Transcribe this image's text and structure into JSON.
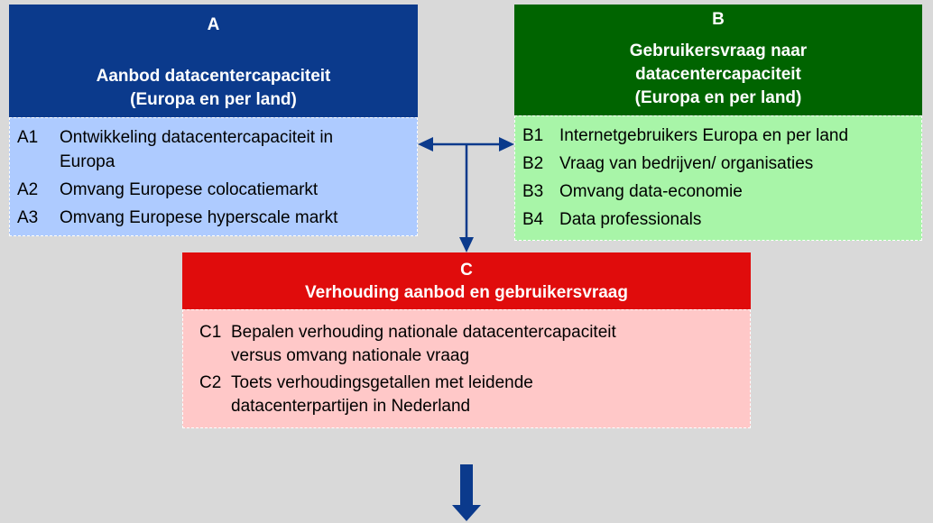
{
  "boxes": [
    {
      "label": "A",
      "title": [
        "Aanbod datacentercapaciteit",
        "(Europa en per land)"
      ],
      "items": [
        {
          "code": "A1",
          "lines": [
            "Ontwikkeling datacentercapaciteit in",
            "Europa"
          ]
        },
        {
          "code": "A2",
          "lines": [
            "Omvang Europese colocatiemarkt"
          ]
        },
        {
          "code": "A3",
          "lines": [
            "Omvang Europese hyperscale markt"
          ]
        }
      ]
    },
    {
      "label": "B",
      "title": [
        "Gebruikersvraag naar",
        "datacentercapaciteit",
        "(Europa en per land)"
      ],
      "items": [
        {
          "code": "B1",
          "lines": [
            "Internetgebruikers Europa en per land"
          ]
        },
        {
          "code": "B2",
          "lines": [
            "Vraag van bedrijven/ organisaties"
          ]
        },
        {
          "code": "B3",
          "lines": [
            "Omvang data-economie"
          ]
        },
        {
          "code": "B4",
          "lines": [
            "Data professionals"
          ]
        }
      ]
    },
    {
      "label": "C",
      "title": [
        "Verhouding aanbod en gebruikersvraag"
      ],
      "items": [
        {
          "code": "C1",
          "lines": [
            "Bepalen verhouding nationale datacentercapaciteit",
            "versus omvang nationale vraag"
          ]
        },
        {
          "code": "C2",
          "lines": [
            "Toets verhoudingsgetallen met leidende",
            "datacenterpartijen in Nederland"
          ]
        }
      ]
    }
  ]
}
